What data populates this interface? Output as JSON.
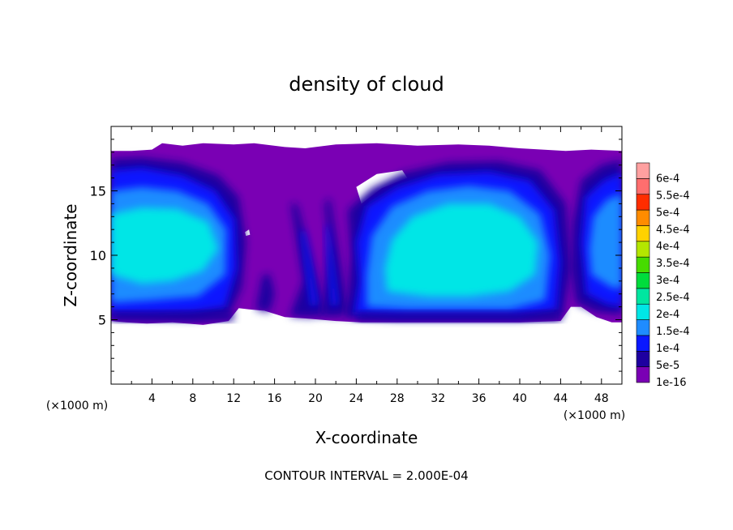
{
  "chart_data": {
    "type": "heatmap",
    "title": "density of cloud",
    "xlabel": "X-coordinate",
    "ylabel": "Z-coordinate",
    "x_unit": "(×1000 m)",
    "y_unit": "(×1000 m)",
    "xlim": [
      0,
      50
    ],
    "ylim": [
      0,
      20
    ],
    "x_ticks": [
      4,
      8,
      12,
      16,
      20,
      24,
      28,
      32,
      36,
      40,
      44,
      48
    ],
    "y_ticks": [
      5,
      10,
      15
    ],
    "footer": "CONTOUR INTERVAL = 2.000E-04",
    "colorbar": {
      "levels": [
        "1e-16",
        "5e-5",
        "1e-4",
        "1.5e-4",
        "2e-4",
        "2.5e-4",
        "3e-4",
        "3.5e-4",
        "4e-4",
        "4.5e-4",
        "5e-4",
        "5.5e-4",
        "6e-4"
      ],
      "colors": [
        "#7a00b4",
        "#1e00a0",
        "#0a18ff",
        "#1f8cff",
        "#00e6e6",
        "#00e6a0",
        "#00dc3c",
        "#46dc00",
        "#b4e600",
        "#ffd200",
        "#ff8c00",
        "#ff2d00",
        "#ff6e6e",
        "#ffa0a0"
      ]
    },
    "cloud_band_z": [
      5,
      18
    ],
    "regions": [
      {
        "name": "left-cell",
        "x_center": 5.5,
        "z_center": 11.5,
        "max_value": "2e-4"
      },
      {
        "name": "central-updraft",
        "x_center": 19.5,
        "z_center": 12,
        "max_value": "1e-4"
      },
      {
        "name": "right-cell",
        "x_center": 34,
        "z_center": 11.5,
        "max_value": "2e-4"
      },
      {
        "name": "right-edge-cell",
        "x_center": 48,
        "z_center": 12,
        "max_value": "1.5e-4"
      }
    ]
  }
}
